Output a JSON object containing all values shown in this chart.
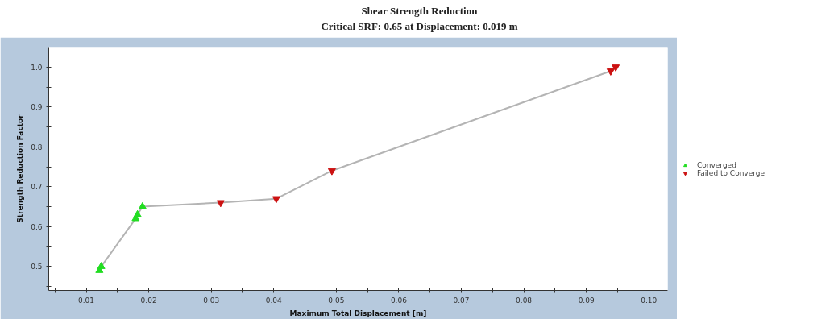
{
  "chart_data": {
    "type": "scatter",
    "title": "Shear Strength Reduction",
    "subtitle": "Critical SRF: 0.65 at Displacement: 0.019 m",
    "xlabel": "Maximum Total Displacement [m]",
    "ylabel": "Strength Reduction Factor",
    "series": [
      {
        "type": "line",
        "color": "#b4b4b4",
        "x": [
          0.0121,
          0.0124,
          0.0179,
          0.0182,
          0.019,
          0.0315,
          0.0404,
          0.0493,
          0.0939,
          0.0947
        ],
        "values": [
          0.49,
          0.5,
          0.62,
          0.63,
          0.65,
          0.66,
          0.67,
          0.74,
          0.99,
          1.0
        ]
      },
      {
        "name": "Converged",
        "color": "#22dd22",
        "marker": "triangle",
        "x": [
          0.0121,
          0.0124,
          0.0179,
          0.0182,
          0.019
        ],
        "values": [
          0.49,
          0.5,
          0.62,
          0.63,
          0.65
        ]
      },
      {
        "name": "Failed to Converge",
        "color": "#cc1111",
        "marker": "triangle_down",
        "x": [
          0.0315,
          0.0404,
          0.0493,
          0.0939,
          0.0947
        ],
        "values": [
          0.66,
          0.67,
          0.74,
          0.99,
          1.0
        ]
      }
    ],
    "xlim": [
      0.004,
      0.103
    ],
    "ylim": [
      0.44,
      1.05
    ],
    "xticks": [
      {
        "value": 0.005,
        "label": null
      },
      {
        "value": 0.01,
        "label": "0.01"
      },
      {
        "value": 0.015,
        "label": null
      },
      {
        "value": 0.02,
        "label": "0.02"
      },
      {
        "value": 0.025,
        "label": null
      },
      {
        "value": 0.03,
        "label": "0.03"
      },
      {
        "value": 0.035,
        "label": null
      },
      {
        "value": 0.04,
        "label": "0.04"
      },
      {
        "value": 0.045,
        "label": null
      },
      {
        "value": 0.05,
        "label": "0.05"
      },
      {
        "value": 0.055,
        "label": null
      },
      {
        "value": 0.06,
        "label": "0.06"
      },
      {
        "value": 0.065,
        "label": null
      },
      {
        "value": 0.07,
        "label": "0.07"
      },
      {
        "value": 0.075,
        "label": null
      },
      {
        "value": 0.08,
        "label": "0.08"
      },
      {
        "value": 0.085,
        "label": null
      },
      {
        "value": 0.09,
        "label": "0.09"
      },
      {
        "value": 0.095,
        "label": null
      },
      {
        "value": 0.1,
        "label": "0.10"
      }
    ],
    "yticks": [
      {
        "value": 0.45,
        "label": null
      },
      {
        "value": 0.5,
        "label": "0.5"
      },
      {
        "value": 0.55,
        "label": null
      },
      {
        "value": 0.6,
        "label": "0.6"
      },
      {
        "value": 0.65,
        "label": null
      },
      {
        "value": 0.7,
        "label": "0.7"
      },
      {
        "value": 0.75,
        "label": null
      },
      {
        "value": 0.8,
        "label": "0.8"
      },
      {
        "value": 0.85,
        "label": null
      },
      {
        "value": 0.9,
        "label": "0.9"
      },
      {
        "value": 0.95,
        "label": null
      },
      {
        "value": 1.0,
        "label": "1.0"
      }
    ],
    "grid": false,
    "legend": "right"
  }
}
